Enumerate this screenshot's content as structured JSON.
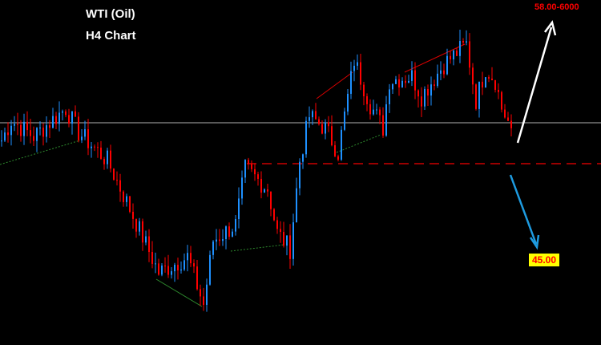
{
  "chart_data": {
    "type": "candlestick",
    "title": "WTI (Oil)",
    "subtitle": "H4 Chart",
    "timeframe": "H4",
    "grid": false,
    "price_path_anchors": [
      {
        "bar": 0,
        "price": 50.23
      },
      {
        "bar": 3,
        "price": 51.1
      },
      {
        "bar": 10,
        "price": 50.4
      },
      {
        "bar": 20,
        "price": 51.63
      },
      {
        "bar": 24,
        "price": 50.58
      },
      {
        "bar": 33,
        "price": 49.35
      },
      {
        "bar": 40,
        "price": 47.25
      },
      {
        "bar": 49,
        "price": 44.46
      },
      {
        "bar": 58,
        "price": 45.16
      },
      {
        "bar": 63,
        "price": 43.06
      },
      {
        "bar": 66,
        "price": 45.86
      },
      {
        "bar": 73,
        "price": 46.56
      },
      {
        "bar": 76,
        "price": 49.0
      },
      {
        "bar": 83,
        "price": 48.13
      },
      {
        "bar": 86,
        "price": 46.2
      },
      {
        "bar": 90,
        "price": 45.5
      },
      {
        "bar": 93,
        "price": 49.35
      },
      {
        "bar": 96,
        "price": 51.28
      },
      {
        "bar": 101,
        "price": 50.76
      },
      {
        "bar": 105,
        "price": 49.7
      },
      {
        "bar": 110,
        "price": 53.73
      },
      {
        "bar": 115,
        "price": 51.8
      },
      {
        "bar": 119,
        "price": 50.76
      },
      {
        "bar": 121,
        "price": 52.86
      },
      {
        "bar": 128,
        "price": 53.03
      },
      {
        "bar": 131,
        "price": 52.16
      },
      {
        "bar": 138,
        "price": 53.56
      },
      {
        "bar": 145,
        "price": 54.43
      },
      {
        "bar": 148,
        "price": 51.98
      },
      {
        "bar": 151,
        "price": 53.38
      },
      {
        "bar": 154,
        "price": 52.86
      },
      {
        "bar": 156,
        "price": 51.63
      },
      {
        "bar": 159,
        "price": 50.76
      }
    ],
    "current_price_line": 51.0,
    "support_level": 49.2,
    "annotations": {
      "target_up": "58.00-6000",
      "target_down": "45.00"
    },
    "colors": {
      "bull": "#1e90ff",
      "bear": "#ff0000",
      "price_line": "#c0c0c0",
      "support": "#cc0000",
      "up_arrow": "#ffffff",
      "down_arrow": "#1e9be0",
      "target_down_bg": "#ffff00"
    }
  }
}
